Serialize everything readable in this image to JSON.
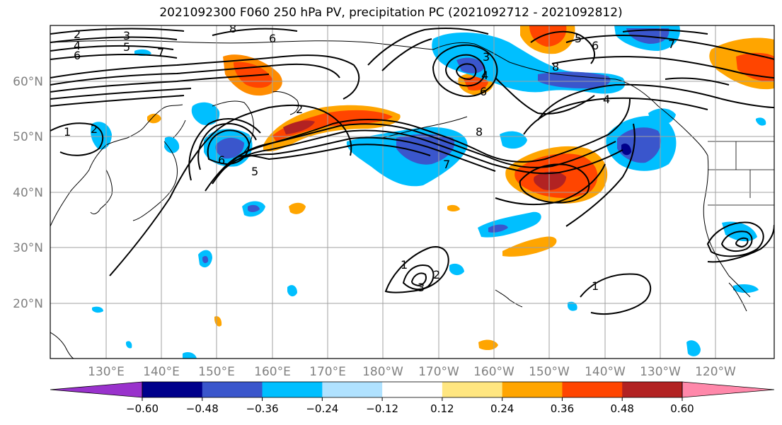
{
  "title": "2021092300 F060 250 hPa PV, precipitation PC (2021092712 - 2021092812)",
  "lat_labels": [
    "60°N",
    "50°N",
    "40°N",
    "30°N",
    "20°N"
  ],
  "lon_labels": [
    "130°E",
    "140°E",
    "150°E",
    "160°E",
    "170°E",
    "180°W",
    "170°W",
    "160°W",
    "150°W",
    "140°W",
    "130°W",
    "120°W"
  ],
  "colorbar": {
    "ticks": [
      "−0.60",
      "−0.48",
      "−0.36",
      "−0.24",
      "−0.12",
      "0.12",
      "0.24",
      "0.36",
      "0.48",
      "0.60"
    ],
    "colors": [
      "#9932cc",
      "#00008b",
      "#3a56cc",
      "#00bfff",
      "#b0e2ff",
      "#ffffff",
      "#ffe680",
      "#ffa500",
      "#ff4500",
      "#b22222",
      "#ff88aa"
    ]
  },
  "contour_labels": [
    "2",
    "3",
    "4",
    "5",
    "6",
    "7",
    "8",
    "6",
    "2",
    "1",
    "5",
    "6",
    "7",
    "8",
    "6",
    "4",
    "3",
    "1",
    "2",
    "3",
    "1",
    "2",
    "4",
    "5",
    "6",
    "7",
    "8"
  ],
  "colors": {
    "negative_strong": "#3a56cc",
    "negative": "#00bfff",
    "positive": "#ffa500",
    "positive_strong": "#ff4500",
    "positive_max": "#b22222"
  }
}
